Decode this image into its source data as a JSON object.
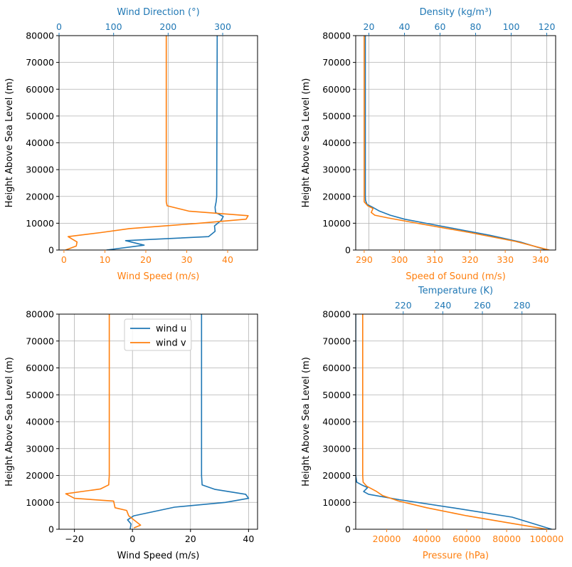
{
  "colors": {
    "blue": "#1f77b4",
    "orange": "#ff7f0e",
    "grid": "#b0b0b0",
    "axis": "#000000"
  },
  "chart_data": [
    {
      "type": "line",
      "name": "wind-speed-direction",
      "ylabel": "Height Above Sea Level (m)",
      "ylim": [
        0,
        80000
      ],
      "yticks": [
        0,
        10000,
        20000,
        30000,
        40000,
        50000,
        60000,
        70000,
        80000
      ],
      "grid": true,
      "bottom_axis": {
        "label": "Wind Speed (m/s)",
        "color": "orange",
        "lim": [
          -1.2,
          47.3
        ],
        "ticks": [
          0,
          10,
          20,
          30,
          40
        ]
      },
      "top_axis": {
        "label": "Wind Direction (°)",
        "color": "blue",
        "lim": [
          0,
          363.9
        ],
        "ticks": [
          0,
          100,
          200,
          300
        ]
      },
      "series": [
        {
          "axis": "top",
          "color": "blue",
          "x": [
            290,
            289,
            288,
            286,
            287,
            301,
            297,
            285,
            286,
            274,
            122,
            156,
            87
          ],
          "y": [
            80000,
            20000,
            18000,
            16000,
            14000,
            12500,
            11000,
            9000,
            7000,
            5000,
            3500,
            1800,
            0
          ]
        },
        {
          "axis": "bottom",
          "color": "orange",
          "x": [
            25,
            25,
            25,
            25.2,
            30.5,
            45,
            44.5,
            33,
            16,
            9,
            1,
            3.2,
            3,
            0.4
          ],
          "y": [
            80000,
            20000,
            18000,
            16500,
            14500,
            12800,
            11500,
            10000,
            8000,
            6500,
            5000,
            3000,
            1500,
            0
          ]
        }
      ]
    },
    {
      "type": "line",
      "name": "speed-of-sound-density",
      "ylabel": "Height Above Sea Level (m)",
      "ylim": [
        0,
        80000
      ],
      "yticks": [
        0,
        10000,
        20000,
        30000,
        40000,
        50000,
        60000,
        70000,
        80000
      ],
      "grid": true,
      "bottom_axis": {
        "label": "Speed of Sound (m/s)",
        "color": "orange",
        "lim": [
          287.6,
          344.3
        ],
        "ticks": [
          290,
          300,
          310,
          320,
          330,
          340
        ]
      },
      "top_axis": {
        "label": "Density (kg/m³)",
        "color": "blue",
        "lim": [
          12.6,
          125
        ],
        "ticks": [
          20,
          40,
          60,
          80,
          100,
          120
        ]
      },
      "series": [
        {
          "axis": "top",
          "color": "blue",
          "x": [
            18,
            18,
            18,
            18.1,
            19,
            22,
            26,
            32,
            40,
            52,
            68,
            88,
            105,
            120
          ],
          "y": [
            80000,
            30000,
            20000,
            18500,
            17000,
            16000,
            14500,
            13000,
            11500,
            10000,
            8000,
            5500,
            3000,
            0
          ]
        },
        {
          "axis": "bottom",
          "color": "orange",
          "x": [
            290,
            290,
            290,
            290,
            291,
            292.5,
            292,
            293,
            296.7,
            305,
            320,
            333,
            342.5
          ],
          "y": [
            80000,
            30000,
            20000,
            18000,
            16500,
            15500,
            14000,
            13000,
            12000,
            10000,
            6500,
            3200,
            0
          ]
        }
      ]
    },
    {
      "type": "line",
      "name": "wind-components",
      "ylabel": "Height Above Sea Level (m)",
      "ylim": [
        0,
        80000
      ],
      "yticks": [
        0,
        10000,
        20000,
        30000,
        40000,
        50000,
        60000,
        70000,
        80000
      ],
      "grid": true,
      "legend": {
        "placement": "upper-center",
        "entries": [
          "wind u",
          "wind v"
        ]
      },
      "bottom_axis": {
        "label": "Wind Speed (m/s)",
        "color": "black",
        "lim": [
          -25.3,
          43.1
        ],
        "ticks": [
          -20,
          0,
          20,
          40
        ]
      },
      "series": [
        {
          "name": "wind u",
          "color": "blue",
          "x": [
            23.8,
            23.8,
            23.8,
            24,
            28.5,
            39,
            40,
            32,
            14.5,
            7,
            0.5,
            -1.7,
            -0.5,
            -0.8
          ],
          "y": [
            80000,
            30000,
            20000,
            16500,
            14800,
            13000,
            11500,
            10000,
            8200,
            6500,
            5000,
            3500,
            2000,
            0
          ]
        },
        {
          "name": "wind v",
          "color": "orange",
          "x": [
            -8,
            -8,
            -8,
            -8.2,
            -11,
            -23,
            -20,
            -6.5,
            -6,
            -2,
            -1.3,
            2.8,
            0.5
          ],
          "y": [
            80000,
            30000,
            20000,
            16500,
            15000,
            13200,
            11500,
            10500,
            8000,
            7000,
            5000,
            1500,
            500
          ]
        }
      ]
    },
    {
      "type": "line",
      "name": "pressure-temperature",
      "ylabel": "Height Above Sea Level (m)",
      "ylim": [
        0,
        80000
      ],
      "yticks": [
        0,
        10000,
        20000,
        30000,
        40000,
        50000,
        60000,
        70000,
        80000
      ],
      "grid": true,
      "bottom_axis": {
        "label": "Pressure (hPa)",
        "color": "orange",
        "lim": [
          4500,
          104500
        ],
        "ticks": [
          20000,
          40000,
          60000,
          80000,
          100000
        ]
      },
      "top_axis": {
        "label": "Temperature (K)",
        "color": "blue",
        "lim": [
          196,
          297
        ],
        "ticks": [
          220,
          240,
          260,
          280
        ]
      },
      "series": [
        {
          "axis": "top",
          "color": "blue",
          "x": [
            196,
            196,
            196,
            196.5,
            199,
            202,
            200,
            202.5,
            218,
            245,
            275,
            295
          ],
          "y": [
            80000,
            30000,
            20000,
            17500,
            16500,
            15500,
            14000,
            13000,
            11000,
            8000,
            4500,
            0
          ]
        },
        {
          "axis": "bottom",
          "color": "orange",
          "x": [
            8000,
            8000,
            8000,
            8200,
            10000,
            15000,
            18000,
            26000,
            40000,
            60000,
            80000,
            100000
          ],
          "y": [
            80000,
            30000,
            20000,
            17500,
            16000,
            14000,
            12500,
            10500,
            8000,
            5000,
            2500,
            0
          ]
        }
      ]
    }
  ]
}
